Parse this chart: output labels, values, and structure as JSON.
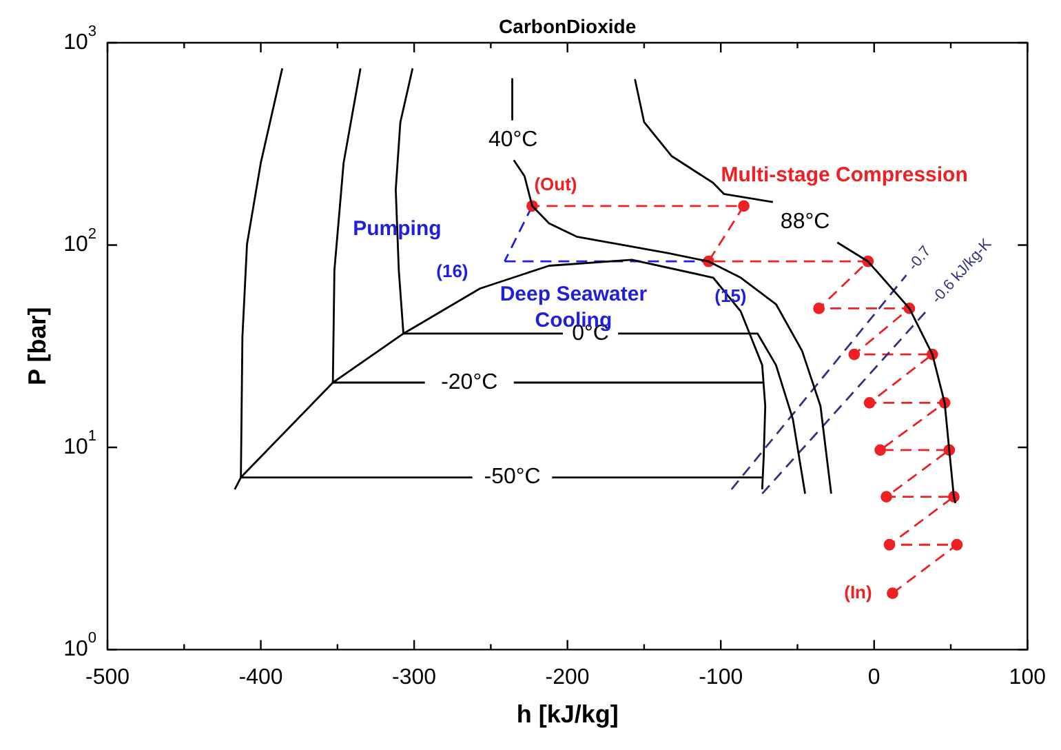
{
  "chart_data": {
    "type": "line",
    "title": "CarbonDioxide",
    "xlabel": "h [kJ/kg]",
    "ylabel": "P [bar]",
    "log": "y",
    "xlim": [
      -500,
      100
    ],
    "ylim": [
      1,
      1000
    ],
    "xticks": [
      -500,
      {
        "value": -450,
        "label": null
      },
      -400,
      {
        "value": -350,
        "label": null
      },
      -300,
      {
        "value": -250,
        "label": null
      },
      -200,
      {
        "value": -150,
        "label": null
      },
      -100,
      {
        "value": -50,
        "label": null
      },
      0,
      {
        "value": 50,
        "label": null
      },
      100
    ],
    "yticks": [
      {
        "value": 1,
        "label": "10$^{0}$"
      },
      {
        "value": 10,
        "label": "10$^{1}$"
      },
      {
        "value": 100,
        "label": "10$^{2}$"
      },
      {
        "value": 1000,
        "label": "10$^{3}$"
      }
    ],
    "line_style": "solid",
    "marker": "none",
    "series": [
      {
        "color": "#000000",
        "x": [
          -417,
          -413,
          -353,
          -307,
          -257,
          -212,
          -158,
          -105,
          -87,
          -73,
          -71,
          -72,
          -73
        ],
        "values": [
          6.2,
          7.1,
          20.9,
          36.5,
          61,
          79,
          84.5,
          69,
          47,
          25.5,
          16,
          9,
          6.2
        ]
      },
      {
        "name": "-50°C",
        "color": "#000000",
        "x": [
          -386,
          -400,
          -409,
          -412,
          -413,
          -262,
          null,
          -210,
          -73
        ],
        "values": [
          747,
          255,
          101,
          35,
          7.1,
          7.1,
          null,
          7.1,
          7.1
        ]
      },
      {
        "name": "-20°C",
        "color": "#000000",
        "x": [
          -335,
          -346,
          -352,
          -353,
          -293,
          null,
          -235,
          -72
        ],
        "values": [
          747,
          255,
          75,
          20.9,
          20.9,
          null,
          20.9,
          20.9
        ]
      },
      {
        "name": "0°C",
        "color": "#000000",
        "x": [
          -301,
          -309,
          -312,
          -310,
          -307,
          -203,
          null,
          -167,
          -76,
          -64,
          -53,
          -45
        ],
        "values": [
          747,
          404,
          188,
          75,
          36.5,
          36.5,
          null,
          36.5,
          36.5,
          25.5,
          13.8,
          5.9
        ]
      },
      {
        "name": "40°C",
        "color": "#000000",
        "x": [
          -236,
          -236,
          null,
          -235,
          -228,
          -223,
          -212,
          -194,
          -167,
          -134,
          -108,
          -87,
          -64,
          -47,
          -35,
          -28
        ],
        "values": [
          661,
          417,
          null,
          263,
          219,
          156,
          128,
          110,
          101,
          91,
          83,
          69,
          51,
          30,
          16,
          5.9
        ]
      },
      {
        "name": "88°C",
        "color": "#000000",
        "x": [
          -156,
          -150,
          -132,
          -105,
          -98,
          -66,
          null,
          -24,
          -4,
          23,
          38,
          46,
          49,
          52,
          53
        ],
        "values": [
          661,
          405,
          275,
          203,
          179,
          163,
          null,
          103,
          83,
          48.6,
          28.8,
          16.6,
          9.7,
          5.7,
          5.3
        ]
      },
      {
        "name": "-0.7",
        "color": "#33337f",
        "line_style": "dashed",
        "x": [
          -93,
          21
        ],
        "values": [
          6.2,
          71
        ]
      },
      {
        "name": "-0.6 kJ/kg-K",
        "color": "#33337f",
        "line_style": "dashed",
        "x": [
          -73,
          36
        ],
        "values": [
          5.9,
          49
        ]
      },
      {
        "name": "Multi-stage Compression",
        "color": "#ee2024",
        "line_style": "dashed",
        "marker": "circle",
        "x": [
          12,
          54,
          10,
          52,
          8,
          49,
          4,
          46,
          -3,
          38,
          -13,
          23,
          -36,
          -4,
          -108,
          -85,
          -223
        ],
        "values": [
          1.9,
          3.3,
          3.3,
          5.7,
          5.7,
          9.7,
          9.7,
          16.6,
          16.6,
          28.8,
          28.8,
          48.6,
          48.6,
          83,
          83,
          156,
          156
        ]
      },
      {
        "name": "Pumping",
        "color": "#1f1fdc",
        "line_style": "dashed",
        "x": [
          -223,
          -241
        ],
        "values": [
          156,
          83
        ]
      },
      {
        "name": "Deep Seawater Cooling",
        "color": "#1f1fdc",
        "line_style": "dashed",
        "x": [
          -241,
          -108
        ],
        "values": [
          83,
          83
        ]
      }
    ],
    "annotations": [
      {
        "text": "(Out)",
        "x": -223,
        "y": 156
      },
      {
        "text": "(16)",
        "x": -241,
        "y": 83
      },
      {
        "text": "(15)",
        "x": -108,
        "y": 83
      },
      {
        "text": "(In)",
        "x": 12,
        "y": 1.9
      }
    ]
  }
}
